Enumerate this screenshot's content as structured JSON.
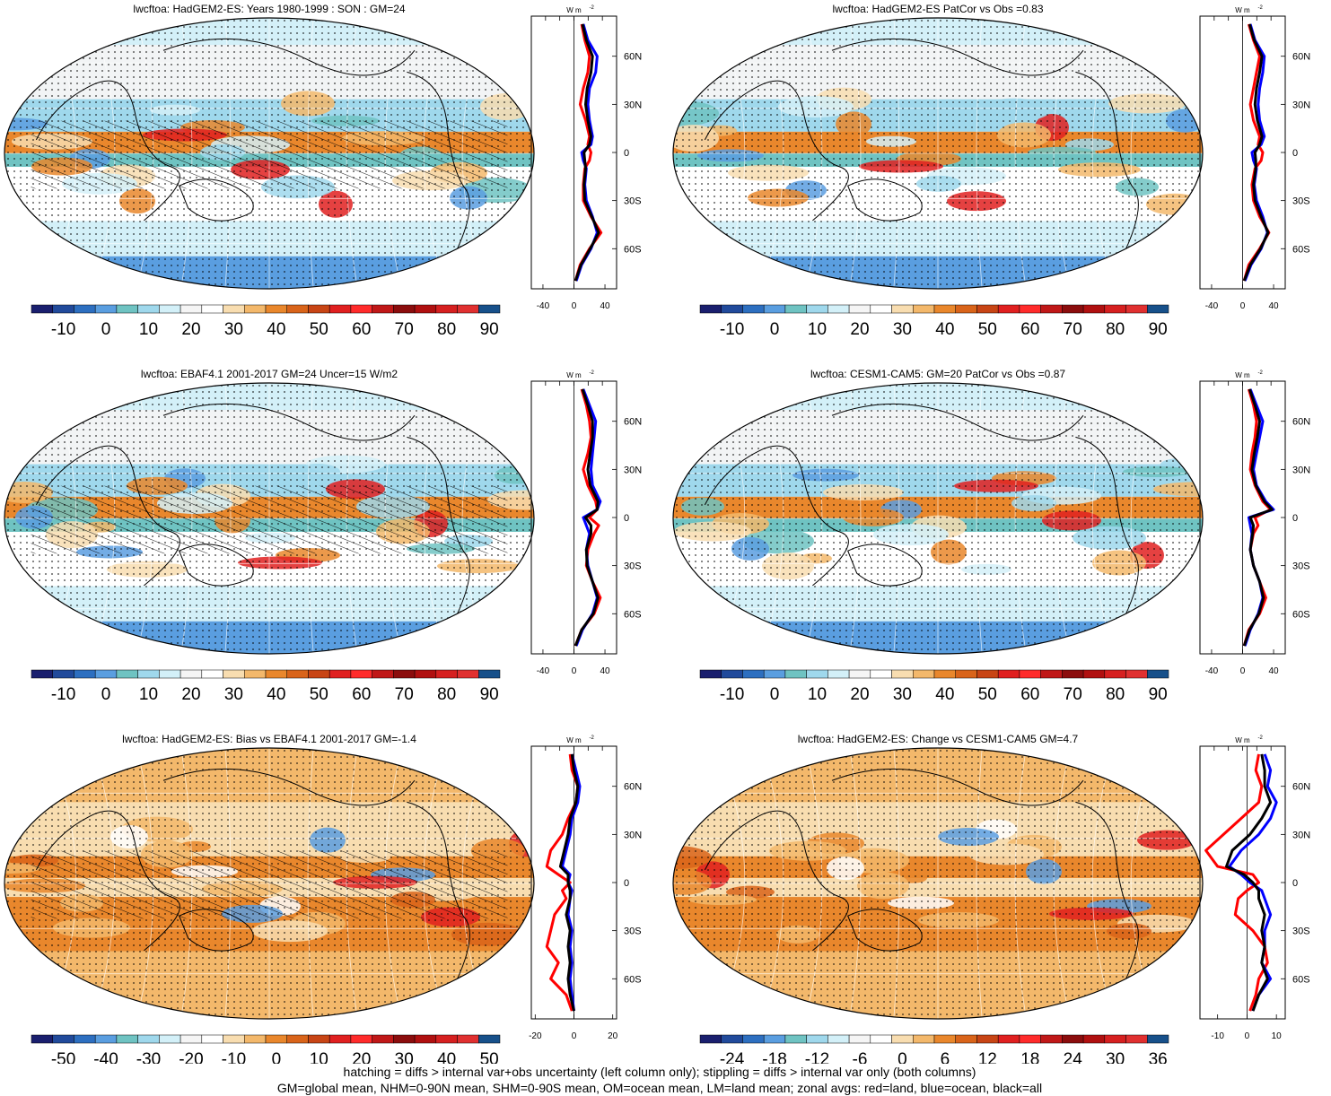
{
  "panels": [
    {
      "title": "lwcftoa: HadGEM2-ES: Years 1980-1999 : SON : GM=24",
      "colorbar_labels": [
        "-10",
        "0",
        "10",
        "20",
        "30",
        "40",
        "50",
        "60",
        "70",
        "80",
        "90"
      ],
      "colorbar_colors": [
        "#1a1f6e",
        "#214a9b",
        "#2d6fc0",
        "#5a9ee0",
        "#6fc3c2",
        "#9fd8ec",
        "#d3f0f8",
        "#f5f5f5",
        "#ffffff",
        "#f8ddb0",
        "#f3b86b",
        "#e9872c",
        "#d9641a",
        "#c84515",
        "#e02020",
        "#ff2b2b",
        "#c01818",
        "#8b0d0d",
        "#b01010",
        "#d62020",
        "#e03030",
        "#17508a"
      ],
      "map_palette": "abs",
      "hatching": true,
      "profile": {
        "xticks": [
          "-40",
          "0",
          "40"
        ],
        "xlim": [
          -55,
          55
        ],
        "yticks": [
          "60N",
          "30N",
          "0",
          "30S",
          "60S"
        ],
        "ylim": [
          -85,
          85
        ],
        "units": "W m",
        "lat": [
          80,
          70,
          60,
          50,
          40,
          30,
          20,
          10,
          5,
          0,
          -5,
          -10,
          -20,
          -30,
          -40,
          -50,
          -60,
          -70,
          -80
        ],
        "land": [
          10,
          14,
          20,
          18,
          12,
          8,
          15,
          20,
          18,
          22,
          20,
          14,
          12,
          12,
          22,
          35,
          20,
          8,
          2
        ],
        "ocean": [
          12,
          18,
          30,
          28,
          20,
          18,
          20,
          24,
          22,
          10,
          12,
          16,
          14,
          16,
          24,
          30,
          22,
          10,
          3
        ],
        "all": [
          11,
          16,
          24,
          22,
          17,
          15,
          18,
          22,
          20,
          13,
          14,
          15,
          13,
          14,
          23,
          32,
          21,
          9,
          2
        ]
      }
    },
    {
      "title": "lwcftoa: HadGEM2-ES PatCor vs Obs =0.83",
      "colorbar_labels": [
        "-10",
        "0",
        "10",
        "20",
        "30",
        "40",
        "50",
        "60",
        "70",
        "80",
        "90"
      ],
      "colorbar_colors": [
        "#1a1f6e",
        "#214a9b",
        "#2d6fc0",
        "#5a9ee0",
        "#6fc3c2",
        "#9fd8ec",
        "#d3f0f8",
        "#f5f5f5",
        "#ffffff",
        "#f8ddb0",
        "#f3b86b",
        "#e9872c",
        "#d9641a",
        "#c84515",
        "#e02020",
        "#ff2b2b",
        "#c01818",
        "#8b0d0d",
        "#b01010",
        "#d62020",
        "#e03030",
        "#17508a"
      ],
      "map_palette": "abs",
      "hatching": false,
      "profile": {
        "xticks": [
          "-40",
          "0",
          "40"
        ],
        "xlim": [
          -55,
          55
        ],
        "yticks": [
          "60N",
          "30N",
          "0",
          "30S",
          "60S"
        ],
        "ylim": [
          -85,
          85
        ],
        "units": "W m",
        "lat": [
          80,
          70,
          60,
          50,
          40,
          30,
          20,
          10,
          5,
          0,
          -5,
          -10,
          -20,
          -30,
          -40,
          -50,
          -60,
          -70,
          -80
        ],
        "land": [
          8,
          14,
          22,
          18,
          14,
          10,
          14,
          22,
          20,
          26,
          24,
          16,
          12,
          14,
          22,
          34,
          22,
          8,
          2
        ],
        "ocean": [
          10,
          16,
          28,
          26,
          22,
          20,
          22,
          28,
          24,
          12,
          14,
          18,
          15,
          18,
          26,
          32,
          24,
          11,
          3
        ],
        "all": [
          9,
          15,
          25,
          22,
          18,
          16,
          19,
          25,
          22,
          16,
          17,
          17,
          14,
          16,
          24,
          33,
          23,
          10,
          2
        ]
      }
    },
    {
      "title": "lwcftoa: EBAF4.1 2001-2017 GM=24 Uncer=15 W/m2",
      "colorbar_labels": [
        "-10",
        "0",
        "10",
        "20",
        "30",
        "40",
        "50",
        "60",
        "70",
        "80",
        "90"
      ],
      "colorbar_colors": [
        "#1a1f6e",
        "#214a9b",
        "#2d6fc0",
        "#5a9ee0",
        "#6fc3c2",
        "#9fd8ec",
        "#d3f0f8",
        "#f5f5f5",
        "#ffffff",
        "#f8ddb0",
        "#f3b86b",
        "#e9872c",
        "#d9641a",
        "#c84515",
        "#e02020",
        "#ff2b2b",
        "#c01818",
        "#8b0d0d",
        "#b01010",
        "#d62020",
        "#e03030",
        "#17508a"
      ],
      "map_palette": "abs",
      "hatching": true,
      "profile": {
        "xticks": [
          "-40",
          "0",
          "40"
        ],
        "xlim": [
          -55,
          55
        ],
        "yticks": [
          "60N",
          "30N",
          "0",
          "30S",
          "60S"
        ],
        "ylim": [
          -85,
          85
        ],
        "units": "W m",
        "lat": [
          80,
          70,
          60,
          50,
          40,
          30,
          20,
          10,
          5,
          0,
          -5,
          -10,
          -20,
          -30,
          -40,
          -50,
          -60,
          -70,
          -80
        ],
        "land": [
          10,
          16,
          20,
          22,
          18,
          12,
          18,
          28,
          30,
          20,
          32,
          26,
          18,
          16,
          24,
          34,
          26,
          10,
          2
        ],
        "ocean": [
          12,
          20,
          28,
          26,
          24,
          22,
          24,
          34,
          30,
          12,
          16,
          20,
          16,
          18,
          24,
          30,
          24,
          11,
          3
        ],
        "all": [
          11,
          18,
          24,
          24,
          21,
          18,
          21,
          31,
          30,
          15,
          22,
          22,
          16,
          17,
          24,
          31,
          25,
          10,
          2
        ]
      }
    },
    {
      "title": "lwcftoa: CESM1-CAM5: GM=20 PatCor vs Obs =0.87",
      "colorbar_labels": [
        "-10",
        "0",
        "10",
        "20",
        "30",
        "40",
        "50",
        "60",
        "70",
        "80",
        "90"
      ],
      "colorbar_colors": [
        "#1a1f6e",
        "#214a9b",
        "#2d6fc0",
        "#5a9ee0",
        "#6fc3c2",
        "#9fd8ec",
        "#d3f0f8",
        "#f5f5f5",
        "#ffffff",
        "#f8ddb0",
        "#f3b86b",
        "#e9872c",
        "#d9641a",
        "#c84515",
        "#e02020",
        "#ff2b2b",
        "#c01818",
        "#8b0d0d",
        "#b01010",
        "#d62020",
        "#e03030",
        "#17508a"
      ],
      "map_palette": "abs",
      "hatching": false,
      "profile": {
        "xticks": [
          "-40",
          "0",
          "40"
        ],
        "xlim": [
          -55,
          55
        ],
        "yticks": [
          "60N",
          "30N",
          "0",
          "30S",
          "60S"
        ],
        "ylim": [
          -85,
          85
        ],
        "units": "W m",
        "lat": [
          80,
          70,
          60,
          50,
          40,
          30,
          20,
          10,
          5,
          0,
          -5,
          -10,
          -20,
          -30,
          -40,
          -50,
          -60,
          -70,
          -80
        ],
        "land": [
          8,
          14,
          18,
          16,
          12,
          10,
          16,
          26,
          36,
          16,
          20,
          14,
          10,
          14,
          22,
          30,
          22,
          8,
          2
        ],
        "ocean": [
          10,
          18,
          26,
          22,
          18,
          14,
          18,
          30,
          40,
          8,
          10,
          12,
          10,
          14,
          22,
          26,
          20,
          10,
          3
        ],
        "all": [
          9,
          16,
          22,
          19,
          15,
          12,
          17,
          28,
          38,
          10,
          14,
          13,
          10,
          14,
          22,
          27,
          21,
          9,
          2
        ]
      }
    },
    {
      "title": "lwcftoa: HadGEM2-ES: Bias vs EBAF4.1 2001-2017  GM=-1.4",
      "colorbar_labels": [
        "-50",
        "-40",
        "-30",
        "-20",
        "-10",
        "0",
        "10",
        "20",
        "30",
        "40",
        "50"
      ],
      "colorbar_colors": [
        "#1a1f6e",
        "#214a9b",
        "#2d6fc0",
        "#5a9ee0",
        "#6fc3c2",
        "#9fd8ec",
        "#d3f0f8",
        "#f5f5f5",
        "#ffffff",
        "#f8ddb0",
        "#f3b86b",
        "#e9872c",
        "#d9641a",
        "#c84515",
        "#e02020",
        "#ff2b2b",
        "#c01818",
        "#8b0d0d",
        "#b01010",
        "#d62020",
        "#e03030",
        "#17508a"
      ],
      "map_palette": "diff",
      "hatching": true,
      "profile": {
        "xticks": [
          "-20",
          "0",
          "20"
        ],
        "xlim": [
          -22,
          22
        ],
        "yticks": [
          "60N",
          "30N",
          "0",
          "30S",
          "60S"
        ],
        "ylim": [
          -85,
          85
        ],
        "units": "W m",
        "lat": [
          80,
          70,
          60,
          50,
          40,
          30,
          20,
          10,
          5,
          0,
          -5,
          -10,
          -20,
          -30,
          -40,
          -50,
          -60,
          -70,
          -80
        ],
        "land": [
          -2,
          -1,
          2,
          1,
          -3,
          -6,
          -12,
          -14,
          -8,
          -2,
          -6,
          -4,
          -10,
          -12,
          -14,
          -8,
          -12,
          -4,
          -1
        ],
        "ocean": [
          -1,
          1,
          3,
          2,
          -1,
          -2,
          -4,
          -6,
          -2,
          -3,
          -1,
          -2,
          -3,
          -1,
          -2,
          -1,
          -2,
          -1,
          0
        ],
        "all": [
          -1,
          0,
          2,
          1,
          -2,
          -3,
          -5,
          -7,
          -3,
          -3,
          -2,
          -2,
          -4,
          -2,
          -3,
          -2,
          -3,
          -2,
          0
        ]
      }
    },
    {
      "title": "lwcftoa: HadGEM2-ES: Change vs CESM1-CAM5 GM=4.7",
      "colorbar_labels": [
        "-24",
        "-18",
        "-12",
        "-6",
        "0",
        "6",
        "12",
        "18",
        "24",
        "30",
        "36"
      ],
      "colorbar_colors": [
        "#1a1f6e",
        "#214a9b",
        "#2d6fc0",
        "#5a9ee0",
        "#6fc3c2",
        "#9fd8ec",
        "#d3f0f8",
        "#f5f5f5",
        "#ffffff",
        "#f8ddb0",
        "#f3b86b",
        "#e9872c",
        "#d9641a",
        "#c84515",
        "#e02020",
        "#ff2b2b",
        "#c01818",
        "#8b0d0d",
        "#b01010",
        "#d62020",
        "#e03030",
        "#17508a"
      ],
      "map_palette": "diff",
      "hatching": false,
      "profile": {
        "xticks": [
          "-10",
          "0",
          "10"
        ],
        "xlim": [
          -16,
          13
        ],
        "yticks": [
          "60N",
          "30N",
          "0",
          "30S",
          "60S"
        ],
        "ylim": [
          -85,
          85
        ],
        "units": "W m",
        "lat": [
          80,
          70,
          60,
          50,
          40,
          30,
          20,
          10,
          5,
          0,
          -5,
          -10,
          -20,
          -30,
          -40,
          -50,
          -60,
          -70,
          -80
        ],
        "land": [
          4,
          3,
          5,
          4,
          -2,
          -8,
          -14,
          -10,
          2,
          4,
          0,
          -3,
          -4,
          2,
          6,
          7,
          4,
          3,
          1
        ],
        "ocean": [
          6,
          8,
          7,
          10,
          8,
          4,
          -2,
          -6,
          -2,
          1,
          5,
          6,
          8,
          6,
          6,
          5,
          8,
          4,
          2
        ],
        "all": [
          5,
          6,
          6,
          8,
          5,
          1,
          -5,
          -7,
          -1,
          2,
          4,
          4,
          6,
          5,
          6,
          5,
          7,
          4,
          2
        ]
      }
    }
  ],
  "footer": [
    "hatching = diffs > internal var+obs uncertainty (left column only); stippling = diffs > internal var only (both columns)",
    "GM=global mean, NHM=0-90N mean, SHM=0-90S mean, OM=ocean mean, LM=land mean; zonal avgs: red=land, blue=ocean, black=all"
  ]
}
